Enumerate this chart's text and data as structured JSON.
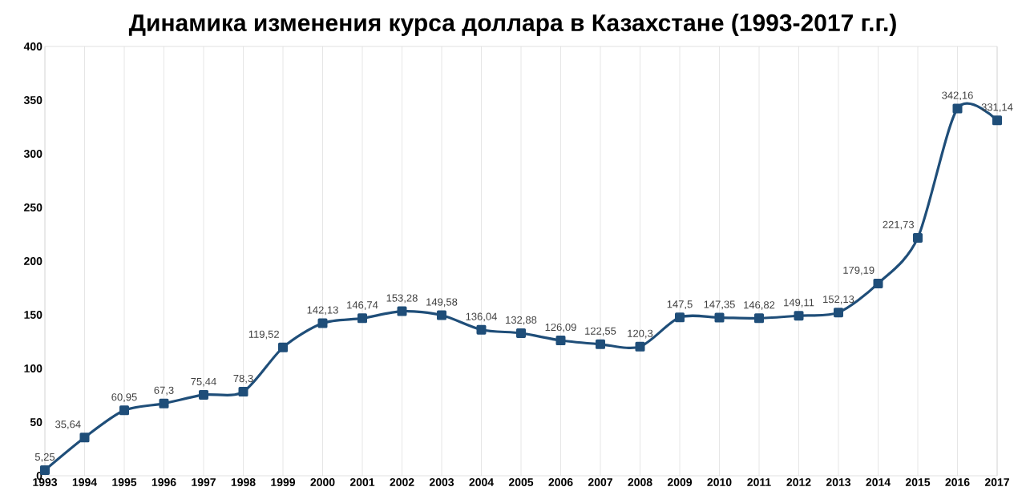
{
  "chart_data": {
    "type": "line",
    "title": "Динамика изменения курса доллара в Казахстане (1993-2017 г.г.)",
    "categories": [
      "1993",
      "1994",
      "1995",
      "1996",
      "1997",
      "1998",
      "1999",
      "2000",
      "2001",
      "2002",
      "2003",
      "2004",
      "2005",
      "2006",
      "2007",
      "2008",
      "2009",
      "2010",
      "2011",
      "2012",
      "2013",
      "2014",
      "2015",
      "2016",
      "2017"
    ],
    "series": [
      {
        "color": "#1f4e79",
        "values": [
          5.25,
          35.64,
          60.95,
          67.3,
          75.44,
          78.3,
          119.52,
          142.13,
          146.74,
          153.28,
          149.58,
          136.04,
          132.88,
          126.09,
          122.55,
          120.3,
          147.5,
          147.35,
          146.82,
          149.11,
          152.13,
          179.19,
          221.73,
          342.16,
          331.14
        ],
        "value_labels": [
          "5,25",
          "35,64",
          "60,95",
          "67,3",
          "75,44",
          "78,3",
          "119,52",
          "142,13",
          "146,74",
          "153,28",
          "149,58",
          "136,04",
          "132,88",
          "126,09",
          "122,55",
          "120,3",
          "147,5",
          "147,35",
          "146,82",
          "149,11",
          "152,13",
          "179,19",
          "221,73",
          "342,16",
          "331,14"
        ]
      }
    ],
    "ylim": [
      0,
      400
    ],
    "yticks": [
      0,
      50,
      100,
      150,
      200,
      250,
      300,
      350,
      400
    ],
    "grid": "x",
    "marker": "square",
    "line_style": "solid"
  }
}
